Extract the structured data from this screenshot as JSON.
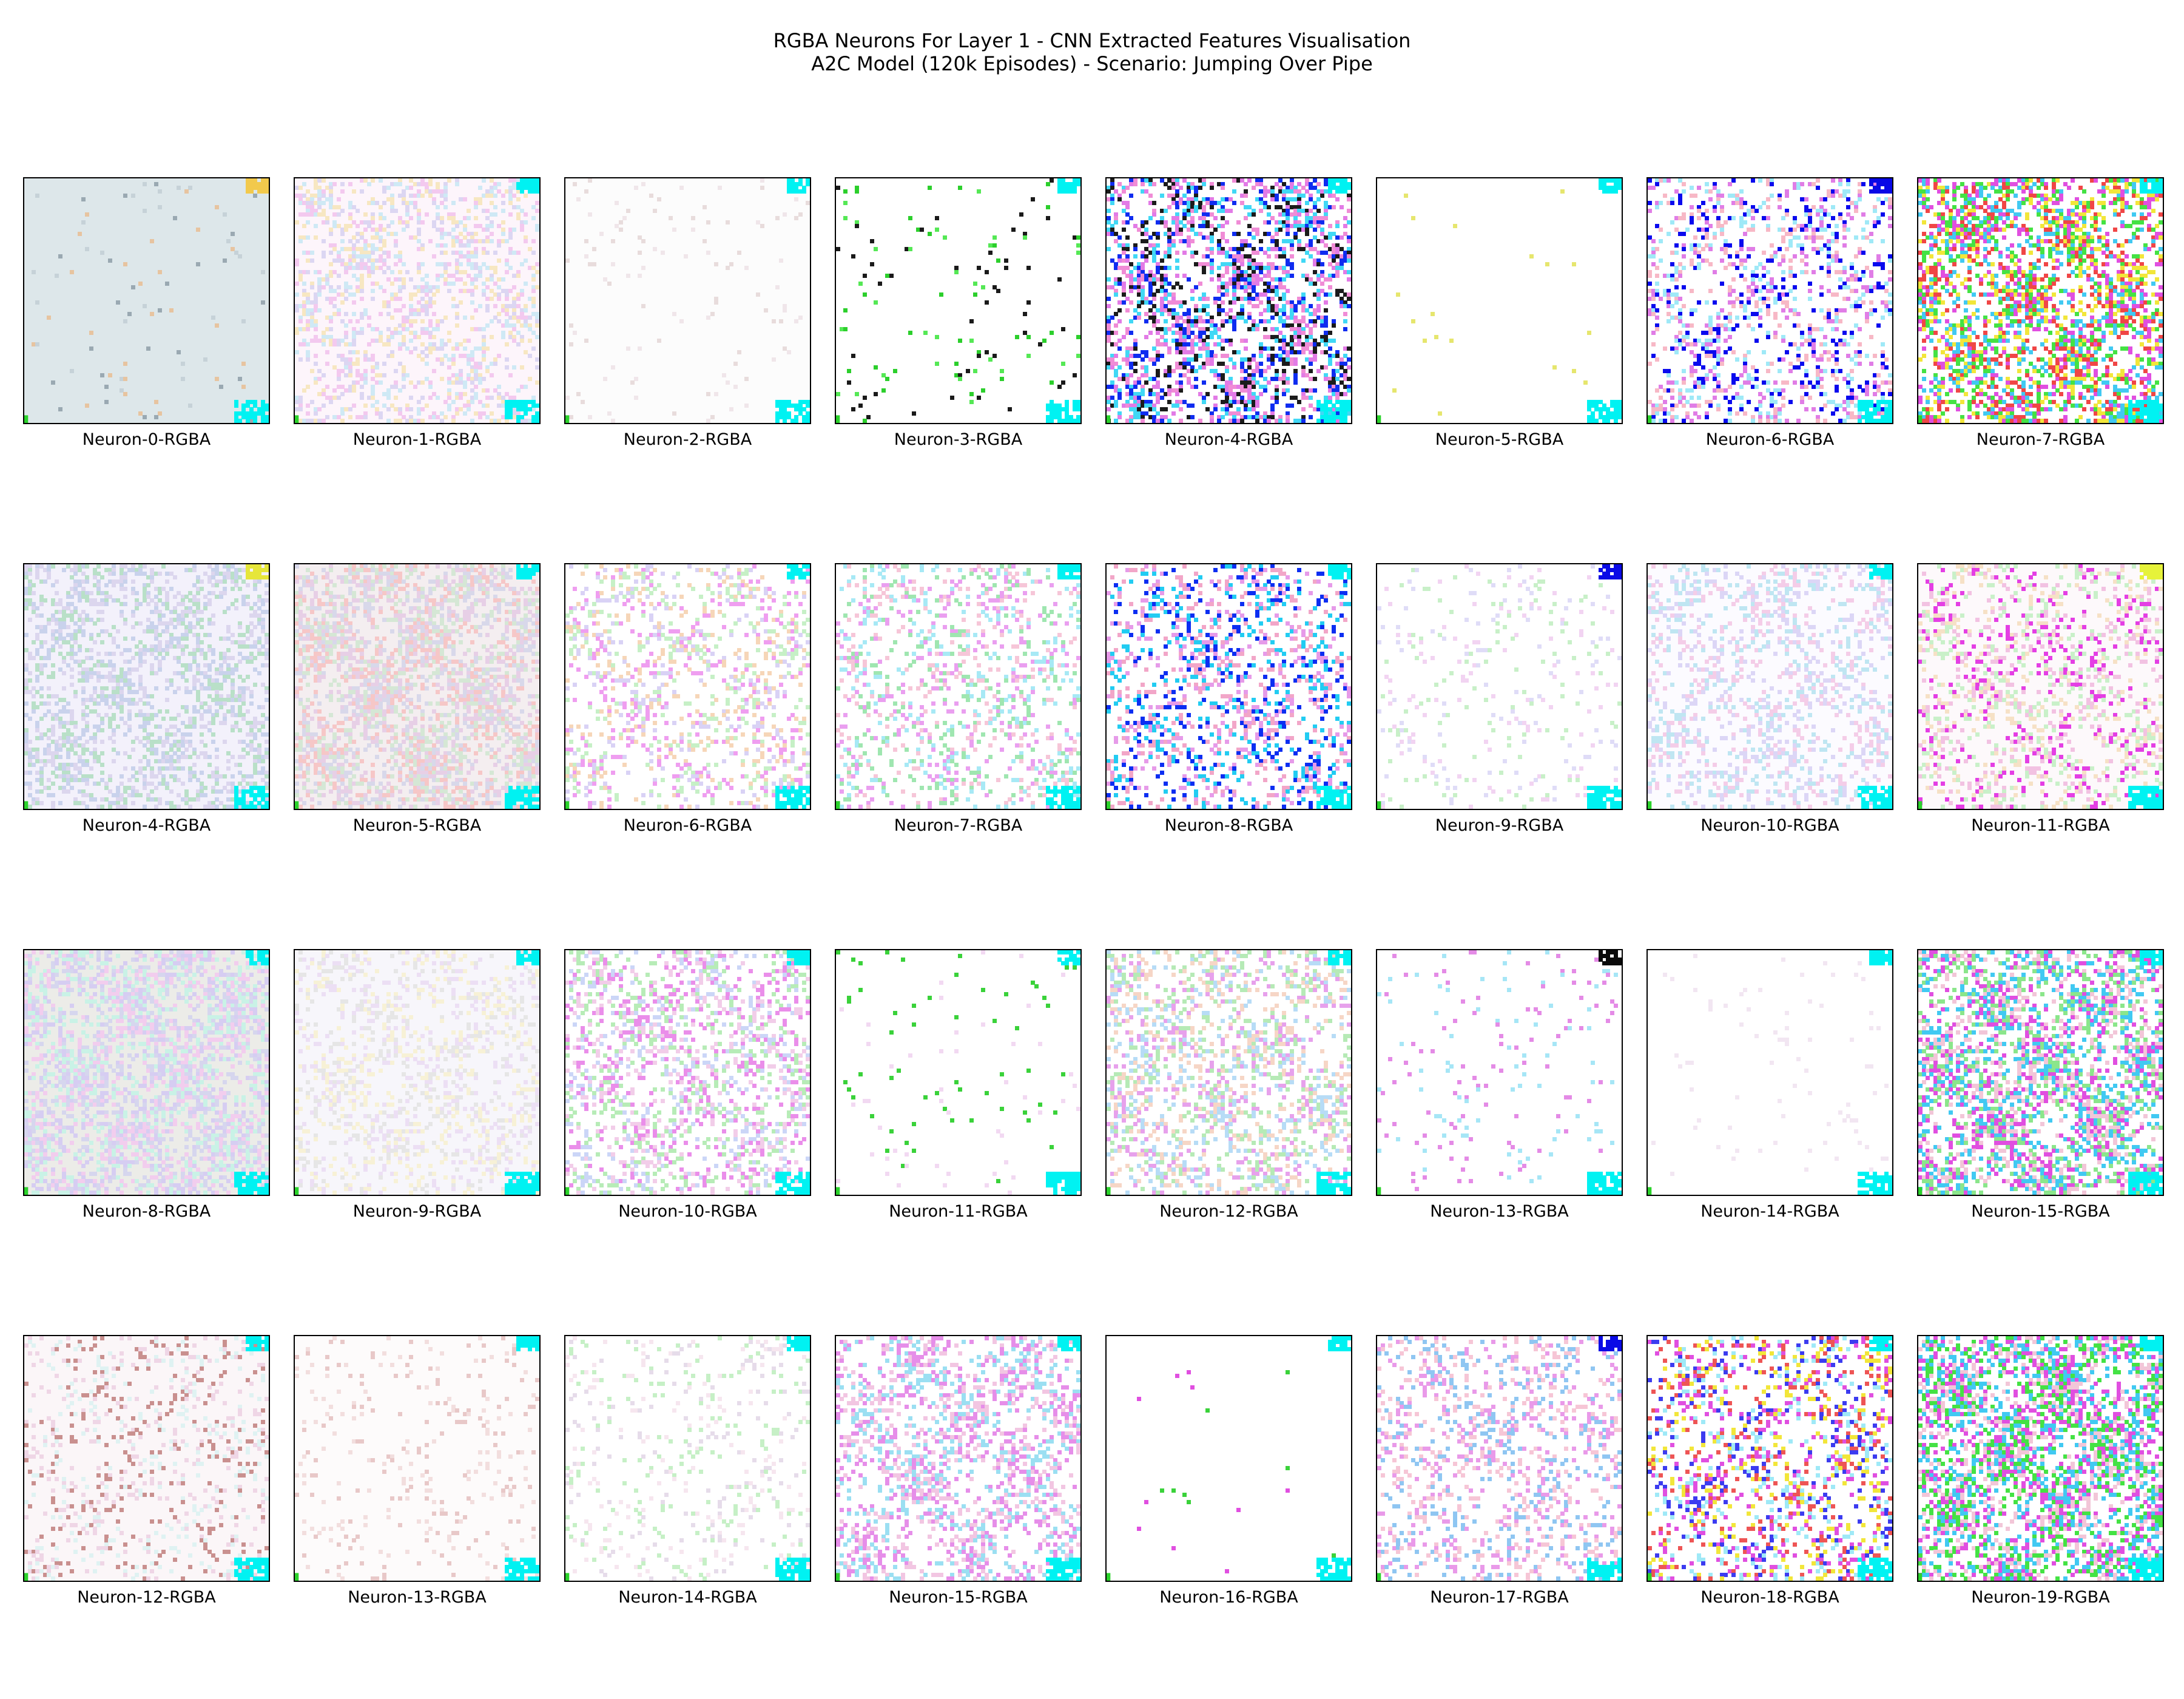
{
  "title": {
    "line1": "RGBA Neurons For Layer 1 - CNN Extracted Features Visualisation",
    "line2": "A2C Model (120k Episodes) - Scenario: Jumping Over Pipe"
  },
  "grid": {
    "rows": 4,
    "columns": 8
  },
  "panels": [
    {
      "label": "Neuron-0-RGBA",
      "base": "#dde7ea",
      "density": 0.02,
      "palette": [
        "#9aa9b2",
        "#c6d2d8",
        "#e7c4a0"
      ],
      "corner": "#f2c94c"
    },
    {
      "label": "Neuron-1-RGBA",
      "base": "#fdf5fb",
      "density": 0.35,
      "palette": [
        "#f3c9ef",
        "#cfe9f5",
        "#f7e7c2",
        "#dcd6f2"
      ],
      "corner": "#00f2f2"
    },
    {
      "label": "Neuron-2-RGBA",
      "base": "#fcfcfc",
      "density": 0.03,
      "palette": [
        "#e8dcdc",
        "#f0e6ea"
      ],
      "corner": "#00f2f2"
    },
    {
      "label": "Neuron-3-RGBA",
      "base": "#ffffff",
      "density": 0.03,
      "palette": [
        "#2ccf2c",
        "#55e855",
        "#1a1a1a"
      ],
      "corner": "#00f2f2"
    },
    {
      "label": "Neuron-4-RGBA",
      "base": "#ffffff",
      "density": 0.45,
      "palette": [
        "#e27be6",
        "#0f2cf0",
        "#1b1b1b",
        "#41d8f5",
        "#f08cd6"
      ],
      "corner": "#00f2f2"
    },
    {
      "label": "Neuron-5-RGBA",
      "base": "#ffffff",
      "density": 0.003,
      "palette": [
        "#e6e66e"
      ],
      "corner": "#00f2f2"
    },
    {
      "label": "Neuron-6-RGBA",
      "base": "#ffffff",
      "density": 0.3,
      "palette": [
        "#e07de6",
        "#9fe9f7",
        "#f7b8c6",
        "#0a0aee"
      ],
      "corner": "#0808e6"
    },
    {
      "label": "Neuron-7-RGBA",
      "base": "#ffffff",
      "density": 0.5,
      "palette": [
        "#e04fe0",
        "#41c9f2",
        "#f2e63a",
        "#f04646",
        "#44e244"
      ],
      "corner": "#00f2f2"
    },
    {
      "label": "Neuron-4-RGBA",
      "base": "#f3f1fb",
      "density": 0.4,
      "palette": [
        "#c9d2ec",
        "#dcd6ee",
        "#b9e0c8"
      ],
      "corner": "#e6e63a"
    },
    {
      "label": "Neuron-5-RGBA",
      "base": "#f4eef0",
      "density": 0.55,
      "palette": [
        "#e7cfe6",
        "#d5e7d5",
        "#f6c7c7",
        "#d8d8ea"
      ],
      "corner": "#00f2f2"
    },
    {
      "label": "Neuron-6-RGBA",
      "base": "#ffffff",
      "density": 0.25,
      "palette": [
        "#ef9ef0",
        "#c6f0c6",
        "#f6d6b8",
        "#d9d2f5"
      ],
      "corner": "#00f2f2"
    },
    {
      "label": "Neuron-7-RGBA",
      "base": "#ffffff",
      "density": 0.25,
      "palette": [
        "#ea9ff0",
        "#9fe6b0",
        "#f6c6d8",
        "#a7e9f5"
      ],
      "corner": "#00f2f2"
    },
    {
      "label": "Neuron-8-RGBA",
      "base": "#ffffff",
      "density": 0.3,
      "palette": [
        "#e69be9",
        "#0c2ef2",
        "#22ccf2",
        "#f2a6c8"
      ],
      "corner": "#00f2f2"
    },
    {
      "label": "Neuron-9-RGBA",
      "base": "#ffffff",
      "density": 0.08,
      "palette": [
        "#c8f0c8",
        "#f2d4f2",
        "#dfdcf7"
      ],
      "corner": "#0a0ae6"
    },
    {
      "label": "Neuron-10-RGBA",
      "base": "#fcfbff",
      "density": 0.3,
      "palette": [
        "#dcd6f6",
        "#f4cde8",
        "#bfe6f2"
      ],
      "corner": "#00f2f2"
    },
    {
      "label": "Neuron-11-RGBA",
      "base": "#fdf9fb",
      "density": 0.3,
      "palette": [
        "#f2c2e2",
        "#e43fe4",
        "#f6e1c6",
        "#c9f0c9"
      ],
      "corner": "#e6f23a"
    },
    {
      "label": "Neuron-8-RGBA",
      "base": "#ecece8",
      "density": 0.55,
      "palette": [
        "#d6d6ee",
        "#f2cdee",
        "#c9f2e6",
        "#d6cdf2"
      ],
      "corner": "#00f2f2"
    },
    {
      "label": "Neuron-9-RGBA",
      "base": "#f7f6fb",
      "density": 0.3,
      "palette": [
        "#e6e6e6",
        "#f7f1d6",
        "#ecdff4"
      ],
      "corner": "#00f2f2"
    },
    {
      "label": "Neuron-10-RGBA",
      "base": "#ffffff",
      "density": 0.35,
      "palette": [
        "#ea8eea",
        "#b7ecb7",
        "#f2cde9",
        "#cbd6f7"
      ],
      "corner": "#00f2f2"
    },
    {
      "label": "Neuron-11-RGBA",
      "base": "#ffffff",
      "density": 0.03,
      "palette": [
        "#f2d9f2",
        "#3ad23a"
      ],
      "corner": "#00f2f2"
    },
    {
      "label": "Neuron-12-RGBA",
      "base": "#ffffff",
      "density": 0.35,
      "palette": [
        "#e7a1ec",
        "#b6eab6",
        "#f6d6c6",
        "#b7dcf6"
      ],
      "corner": "#00f2f2"
    },
    {
      "label": "Neuron-13-RGBA",
      "base": "#ffffff",
      "density": 0.05,
      "palette": [
        "#e48be6",
        "#a6e6f6"
      ],
      "corner": "#0a0a0a"
    },
    {
      "label": "Neuron-14-RGBA",
      "base": "#ffffff",
      "density": 0.02,
      "palette": [
        "#f2e6f2"
      ],
      "corner": "#00f2f2"
    },
    {
      "label": "Neuron-15-RGBA",
      "base": "#ffffff",
      "density": 0.5,
      "palette": [
        "#e04fe0",
        "#41c9f2",
        "#f2c6d8",
        "#8be68b"
      ],
      "corner": "#00f2f2"
    },
    {
      "label": "Neuron-12-RGBA",
      "base": "#fbf6f8",
      "density": 0.2,
      "palette": [
        "#c9908f",
        "#efd6e6",
        "#dff2f2"
      ],
      "corner": "#00f2f2"
    },
    {
      "label": "Neuron-13-RGBA",
      "base": "#fdfbfb",
      "density": 0.08,
      "palette": [
        "#f2dede",
        "#e8c8c8"
      ],
      "corner": "#00f2f2"
    },
    {
      "label": "Neuron-14-RGBA",
      "base": "#ffffff",
      "density": 0.12,
      "palette": [
        "#c6f0c6",
        "#e6dcea",
        "#f6e6ef"
      ],
      "corner": "#00f2f2"
    },
    {
      "label": "Neuron-15-RGBA",
      "base": "#ffffff",
      "density": 0.35,
      "palette": [
        "#e68ee9",
        "#9bdff2",
        "#f2c6e2"
      ],
      "corner": "#00f2f2"
    },
    {
      "label": "Neuron-16-RGBA",
      "base": "#ffffff",
      "density": 0.005,
      "palette": [
        "#e04fe0",
        "#3ad23a"
      ],
      "corner": "#00f2f2"
    },
    {
      "label": "Neuron-17-RGBA",
      "base": "#ffffff",
      "density": 0.25,
      "palette": [
        "#e99ae9",
        "#8fc6f2",
        "#f6c6d6"
      ],
      "corner": "#0a0ae6"
    },
    {
      "label": "Neuron-18-RGBA",
      "base": "#ffffff",
      "density": 0.3,
      "palette": [
        "#ee5555",
        "#f2e63a",
        "#9fe9f7",
        "#e04fe0",
        "#3c3cf0"
      ],
      "corner": "#00f2f2"
    },
    {
      "label": "Neuron-19-RGBA",
      "base": "#ffffff",
      "density": 0.55,
      "palette": [
        "#e04fe0",
        "#41c9f2",
        "#44e244",
        "#f2c6d8"
      ],
      "corner": "#00f2f2"
    }
  ]
}
